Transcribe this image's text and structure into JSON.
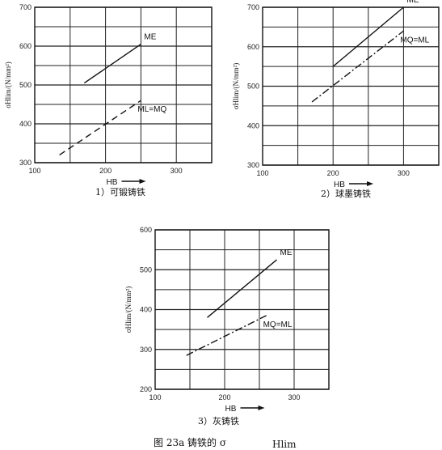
{
  "figure_caption": "图 23a     铸铁的 σ",
  "figure_caption_sub": "Hlim",
  "chart_data": [
    {
      "type": "line",
      "caption": "1）可锻铸铁",
      "ylabel": "σHlim/(N/mm²)",
      "xlabel": "HB",
      "xlim": [
        100,
        350
      ],
      "ylim": [
        300,
        700
      ],
      "xticks": [
        100,
        200,
        300
      ],
      "yticks": [
        300,
        400,
        500,
        600,
        700
      ],
      "grid": true,
      "series": [
        {
          "name": "ME",
          "style": "solid",
          "x": [
            170,
            250
          ],
          "y": [
            505,
            605
          ]
        },
        {
          "name": "ML=MQ",
          "style": "dashed",
          "x": [
            135,
            250
          ],
          "y": [
            320,
            460
          ]
        }
      ]
    },
    {
      "type": "line",
      "caption": "2）球墨铸铁",
      "ylabel": "σHlim/(N/mm²)",
      "xlabel": "HB",
      "xlim": [
        100,
        350
      ],
      "ylim": [
        300,
        700
      ],
      "xticks": [
        100,
        200,
        300
      ],
      "yticks": [
        300,
        400,
        500,
        600,
        700
      ],
      "grid": true,
      "series": [
        {
          "name": "ME",
          "style": "solid",
          "x": [
            200,
            300
          ],
          "y": [
            550,
            700
          ]
        },
        {
          "name": "MQ=ML",
          "style": "dashdot",
          "x": [
            170,
            300
          ],
          "y": [
            460,
            640
          ]
        }
      ]
    },
    {
      "type": "line",
      "caption": "3）灰铸铁",
      "ylabel": "σHlim/(N/mm²)",
      "xlabel": "HB",
      "xlim": [
        100,
        350
      ],
      "ylim": [
        200,
        600
      ],
      "xticks": [
        100,
        200,
        300
      ],
      "yticks": [
        200,
        300,
        400,
        500,
        600
      ],
      "grid": true,
      "series": [
        {
          "name": "ME",
          "style": "solid",
          "x": [
            175,
            275
          ],
          "y": [
            380,
            525
          ]
        },
        {
          "name": "MQ=ML",
          "style": "dashdot",
          "x": [
            145,
            260
          ],
          "y": [
            285,
            385
          ]
        }
      ]
    }
  ]
}
